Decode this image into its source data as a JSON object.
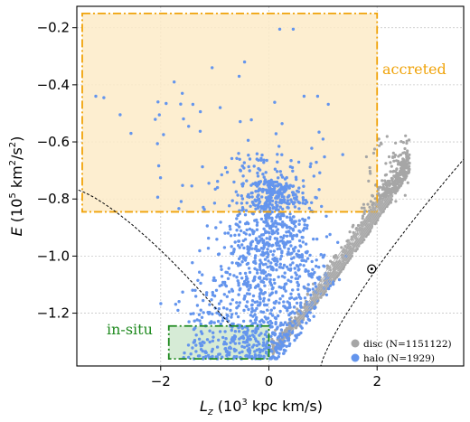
{
  "chart_data": {
    "type": "scatter",
    "xlabel": "L_z (10^3 kpc km/s)",
    "ylabel": "E (10^5 km^2/s^2)",
    "xlim": [
      -3.55,
      3.6
    ],
    "ylim": [
      -1.385,
      -0.125
    ],
    "x_ticks": [
      -2,
      0,
      2
    ],
    "y_ticks": [
      -1.2,
      -1.0,
      -0.8,
      -0.6,
      -0.4,
      -0.2
    ],
    "x_tick_labels": [
      "−2",
      "0",
      "2"
    ],
    "y_tick_labels": [
      "−1.2",
      "−1.0",
      "−0.8",
      "−0.6",
      "−0.4",
      "−0.2"
    ],
    "grid": true,
    "legend_position": "lower-right",
    "regions": [
      {
        "label": "accreted",
        "x": [
          -3.45,
          2.0
        ],
        "y": [
          -0.845,
          -0.15
        ],
        "color": "#f0a30a",
        "fill": "#fdebc8"
      },
      {
        "label": "in-situ",
        "x": [
          -1.85,
          0.0
        ],
        "y": [
          -1.36,
          -1.245
        ],
        "color": "#1f8a1f",
        "fill": "#cfe8cf"
      }
    ],
    "series": [
      {
        "name": "disc (N=1151122)",
        "color": "#a6a6a6"
      },
      {
        "name": "halo (N=1929)",
        "color": "#6495ed"
      }
    ],
    "sun_marker": {
      "x": 1.9,
      "y": -1.045
    },
    "zero_velocity_curves": "dashed",
    "data_points": {
      "halo_sample": [
        [
          -3.2,
          -0.44
        ],
        [
          -3.05,
          -0.445
        ],
        [
          -2.75,
          -0.505
        ],
        [
          -2.55,
          -0.57
        ],
        [
          -2.05,
          -0.46
        ],
        [
          -1.75,
          -0.39
        ],
        [
          -1.6,
          -0.43
        ],
        [
          -1.05,
          -0.34
        ],
        [
          -0.55,
          -0.37
        ],
        [
          -0.45,
          -0.32
        ],
        [
          0.2,
          -0.205
        ],
        [
          0.45,
          -0.205
        ],
        [
          -0.9,
          -0.48
        ],
        [
          0.65,
          -0.44
        ],
        [
          0.9,
          -0.44
        ],
        [
          1.0,
          -0.59
        ],
        [
          -0.95,
          -0.76
        ],
        [
          -0.2,
          -0.72
        ],
        [
          0.3,
          -0.73
        ]
      ]
    }
  }
}
